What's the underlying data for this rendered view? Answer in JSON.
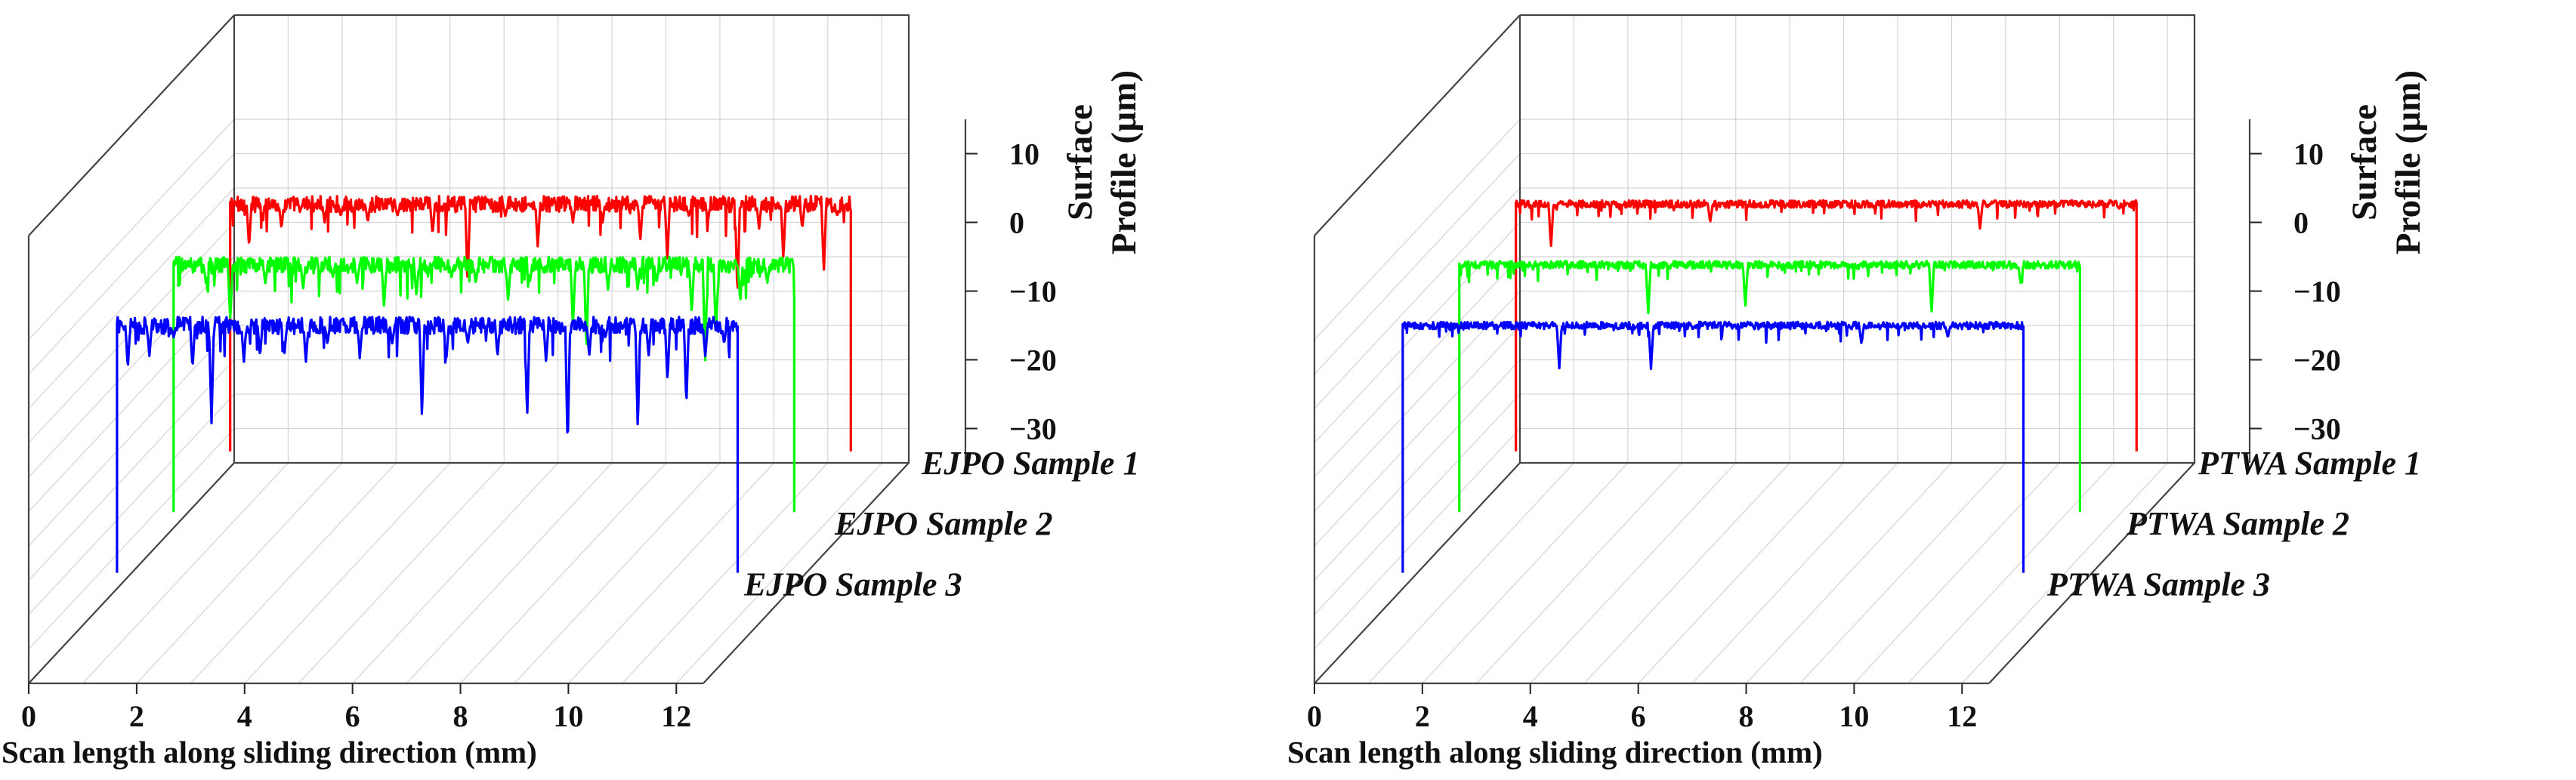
{
  "chart_data": [
    {
      "type": "line",
      "subtype": "3d-waterfall",
      "xlabel": "Scan length along sliding direction (mm)",
      "zlabel": "Surface Profile (µm)",
      "xlim": [
        0,
        12.5
      ],
      "xticks": [
        "0",
        "2",
        "4",
        "6",
        "8",
        "10",
        "12"
      ],
      "zlim": [
        -35,
        15
      ],
      "zticks": [
        "10",
        "0",
        "−10",
        "−20",
        "−30"
      ],
      "grid": true,
      "series": [
        {
          "name": "EJPO Sample 1",
          "color": "#ff0000",
          "x_range": [
            0.7,
            12.2
          ],
          "baseline": -6,
          "noise": 1.3,
          "dips": [
            [
              1.05,
              -13
            ],
            [
              1.3,
              -8
            ],
            [
              1.65,
              -10
            ],
            [
              2.0,
              -7
            ],
            [
              2.45,
              -9
            ],
            [
              2.75,
              -8
            ],
            [
              3.25,
              -9
            ],
            [
              3.8,
              -8
            ],
            [
              4.45,
              -11
            ],
            [
              5.1,
              -19
            ],
            [
              5.8,
              -8
            ],
            [
              6.4,
              -13
            ],
            [
              7.05,
              -9
            ],
            [
              7.6,
              -9
            ],
            [
              8.3,
              -12
            ],
            [
              8.8,
              -15
            ],
            [
              9.2,
              -8
            ],
            [
              9.55,
              -9
            ],
            [
              10.1,
              -21
            ],
            [
              10.5,
              -10
            ],
            [
              10.95,
              -15
            ],
            [
              11.3,
              -10
            ],
            [
              11.7,
              -17
            ],
            [
              11.95,
              -8
            ]
          ]
        },
        {
          "name": "EJPO Sample 2",
          "color": "#00ff00",
          "x_range": [
            0.7,
            12.2
          ],
          "baseline": -6,
          "noise": 1.3,
          "dips": [
            [
              1.3,
              -9
            ],
            [
              1.75,
              -15
            ],
            [
              2.4,
              -9
            ],
            [
              3.1,
              -10
            ],
            [
              3.65,
              -8
            ],
            [
              4.1,
              -9
            ],
            [
              4.6,
              -13
            ],
            [
              5.2,
              -11
            ],
            [
              5.85,
              -8
            ],
            [
              6.3,
              -9
            ],
            [
              6.9,
              -12
            ],
            [
              7.3,
              -9
            ],
            [
              8.1,
              -16
            ],
            [
              8.35,
              -20
            ],
            [
              8.75,
              -10
            ],
            [
              9.3,
              -10
            ],
            [
              9.65,
              -9
            ],
            [
              10.3,
              -14
            ],
            [
              10.55,
              -22
            ],
            [
              10.75,
              -18
            ],
            [
              11.2,
              -12
            ],
            [
              11.7,
              -9
            ]
          ]
        },
        {
          "name": "EJPO Sample 3",
          "color": "#0000ff",
          "x_range": [
            0.7,
            12.2
          ],
          "baseline": -6,
          "noise": 1.4,
          "dips": [
            [
              0.9,
              -13
            ],
            [
              1.3,
              -11
            ],
            [
              1.75,
              -8
            ],
            [
              2.1,
              -13
            ],
            [
              2.45,
              -22
            ],
            [
              3.05,
              -12
            ],
            [
              3.35,
              -11
            ],
            [
              3.8,
              -11
            ],
            [
              4.2,
              -12
            ],
            [
              4.6,
              -9
            ],
            [
              5.2,
              -11
            ],
            [
              5.8,
              -9
            ],
            [
              6.35,
              -21
            ],
            [
              6.8,
              -12
            ],
            [
              7.2,
              -9
            ],
            [
              7.75,
              -11
            ],
            [
              8.3,
              -21
            ],
            [
              8.65,
              -12
            ],
            [
              9.05,
              -26
            ],
            [
              9.45,
              -11
            ],
            [
              9.75,
              -8
            ],
            [
              10.35,
              -23
            ],
            [
              10.55,
              -11
            ],
            [
              10.9,
              -15
            ],
            [
              11.25,
              -19
            ],
            [
              11.6,
              -11
            ],
            [
              11.95,
              -9
            ]
          ]
        }
      ]
    },
    {
      "type": "line",
      "subtype": "3d-waterfall",
      "xlabel": "Scan length along sliding direction (mm)",
      "zlabel": "Surface Profile (µm)",
      "xlim": [
        0,
        12.5
      ],
      "xticks": [
        "0",
        "2",
        "4",
        "6",
        "8",
        "10",
        "12"
      ],
      "zlim": [
        -35,
        15
      ],
      "zticks": [
        "10",
        "0",
        "−10",
        "−20",
        "−30"
      ],
      "grid": true,
      "series": [
        {
          "name": "PTWA  Sample 1",
          "color": "#ff0000",
          "x_range": [
            0.7,
            12.2
          ],
          "baseline": -6,
          "noise": 0.6,
          "dips": [
            [
              1.35,
              -13
            ],
            [
              4.3,
              -9
            ],
            [
              9.3,
              -10
            ]
          ]
        },
        {
          "name": "PTWA  Sample 2",
          "color": "#00ff00",
          "x_range": [
            0.7,
            12.2
          ],
          "baseline": -6,
          "noise": 0.6,
          "dips": [
            [
              4.2,
              -14
            ],
            [
              6.0,
              -13
            ],
            [
              9.45,
              -14
            ],
            [
              11.1,
              -9
            ]
          ]
        },
        {
          "name": "PTWA  Sample 3",
          "color": "#0000ff",
          "x_range": [
            0.7,
            12.2
          ],
          "baseline": -6,
          "noise": 0.6,
          "dips": [
            [
              3.6,
              -13
            ],
            [
              5.3,
              -13
            ],
            [
              9.2,
              -9
            ],
            [
              10.8,
              -8
            ]
          ]
        }
      ]
    }
  ]
}
